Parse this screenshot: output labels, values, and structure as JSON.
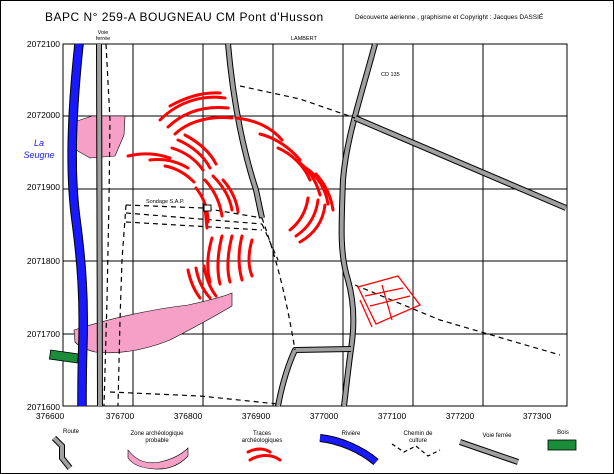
{
  "title": "BAPC N° 259-A   BOUGNEAU  CM  Pont d'Husson",
  "copyright": "Découverte aérienne , graphisme et Copyright : Jacques DASSIÉ",
  "grid": {
    "y_labels": [
      "2072100",
      "2072000",
      "2071900",
      "2071800",
      "2071700",
      "2071600"
    ],
    "x_labels": [
      "376600",
      "376700",
      "376800",
      "376900",
      "377000",
      "377100",
      "377200",
      "377300"
    ]
  },
  "map_labels": {
    "river_name": "La Seugne",
    "voie_ferree": "Voie ferrée",
    "lambert": "LAMBERT",
    "cd": "CD 135",
    "sondage": "Sondage S.A.P."
  },
  "legend": [
    {
      "label": "Route",
      "icon": "road-icon"
    },
    {
      "label": "Zone archéologique probable",
      "icon": "archaeological-zone-icon"
    },
    {
      "label": "Traces archéologiques",
      "icon": "archaeological-traces-icon"
    },
    {
      "label": "Rivière",
      "icon": "river-icon"
    },
    {
      "label": "Chemin de culture",
      "icon": "farm-track-icon"
    },
    {
      "label": "Voie ferrée",
      "icon": "railway-icon"
    },
    {
      "label": "Bois",
      "icon": "woods-icon"
    }
  ],
  "colors": {
    "river": "#1919ff",
    "archaeological_zone": "#f6a0c8",
    "traces": "#ff0000",
    "road": "#a0a0a0",
    "woods": "#1a8c3a",
    "grid": "#000000"
  }
}
